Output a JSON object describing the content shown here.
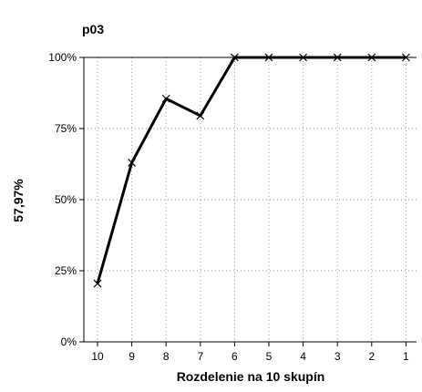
{
  "chart_data": {
    "type": "line",
    "title": "p03",
    "xlabel": "Rozdelenie na 10 skupín",
    "ylabel": "57,97%",
    "categories": [
      "10",
      "9",
      "8",
      "7",
      "6",
      "5",
      "4",
      "3",
      "2",
      "1"
    ],
    "series": [
      {
        "values": [
          20.5,
          63,
          85.5,
          79.5,
          100,
          100,
          100,
          100,
          100,
          100
        ]
      }
    ],
    "ylim": [
      0,
      100
    ],
    "yticks": [
      0,
      25,
      50,
      75,
      100
    ],
    "ytick_labels": [
      "0%",
      "25%",
      "50%",
      "75%",
      "100%"
    ],
    "grid": true,
    "marker": "x",
    "line_color": "#000000"
  }
}
